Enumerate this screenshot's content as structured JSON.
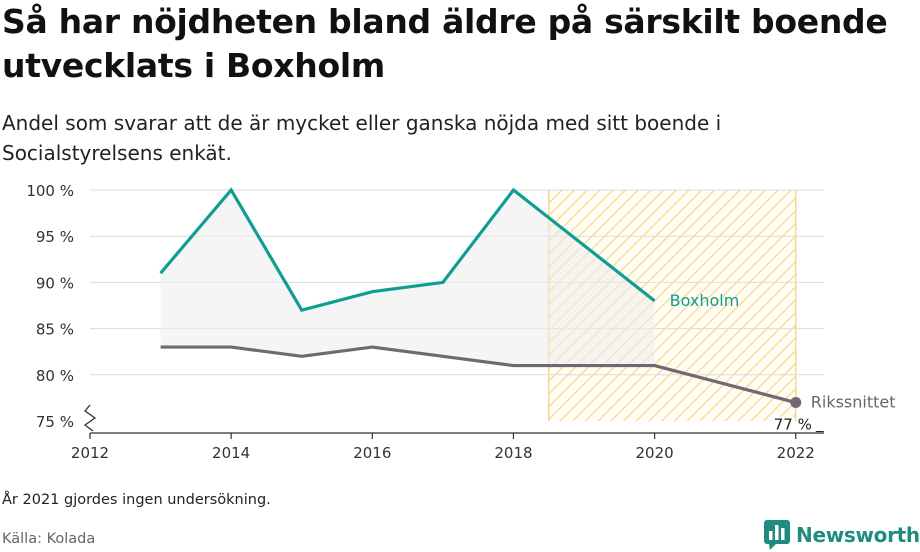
{
  "title": "Så har nöjdheten bland äldre på särskilt boende utvecklats i Boxholm",
  "subtitle": "Andel som svarar att de är mycket eller ganska nöjda med sitt boende i Socialstyrelsens enkät.",
  "note": "År 2021 gjordes ingen undersökning.",
  "source": "Källa: Kolada",
  "brand": "Newsworthy",
  "chart_data": {
    "type": "line",
    "x_ticks": [
      2012,
      2014,
      2016,
      2018,
      2020,
      2022
    ],
    "y_ticks": [
      75,
      80,
      85,
      90,
      95,
      100
    ],
    "y_tick_labels": [
      "75 %",
      "80 %",
      "85 %",
      "90 %",
      "95 %",
      "100 %"
    ],
    "xlim": [
      2012,
      2022.4
    ],
    "ylim": [
      75,
      100
    ],
    "y_axis_break": true,
    "shaded_region": [
      2018.5,
      2022
    ],
    "series": [
      {
        "name": "Boxholm",
        "color": "#109e93",
        "x": [
          2013,
          2014,
          2015,
          2016,
          2017,
          2018,
          2020
        ],
        "y": [
          91,
          100,
          87,
          89,
          90,
          100,
          88
        ]
      },
      {
        "name": "Rikssnittet",
        "color": "#6f6a71",
        "x": [
          2013,
          2014,
          2015,
          2016,
          2017,
          2018,
          2020,
          2022
        ],
        "y": [
          83,
          83,
          82,
          83,
          82,
          81,
          81,
          77
        ]
      }
    ],
    "annotations": [
      {
        "series": "Rikssnittet",
        "x": 2022,
        "text": "77 %"
      }
    ]
  }
}
